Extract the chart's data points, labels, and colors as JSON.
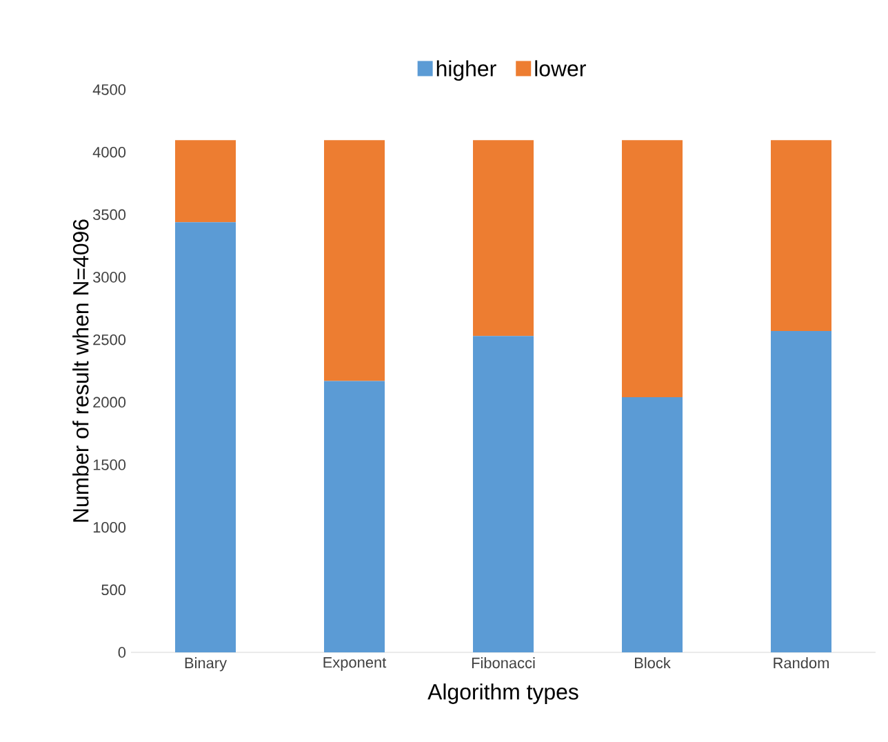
{
  "chart_data": {
    "type": "bar",
    "stacked": true,
    "xlabel": "Algorithm types",
    "ylabel": "Number of result when N=4096",
    "categories": [
      "Binary",
      "Exponent",
      "Fibonacci",
      "Block",
      "Random"
    ],
    "series": [
      {
        "name": "higher",
        "color": "#5b9bd5",
        "values": [
          3440,
          2170,
          2530,
          2040,
          2570
        ]
      },
      {
        "name": "lower",
        "color": "#ed7d31",
        "values": [
          656,
          1926,
          1566,
          2056,
          1526
        ]
      }
    ],
    "ylim": [
      0,
      4500
    ],
    "yticks": [
      0,
      500,
      1000,
      1500,
      2000,
      2500,
      3000,
      3500,
      4000,
      4500
    ],
    "legend": "top",
    "grid": false
  }
}
